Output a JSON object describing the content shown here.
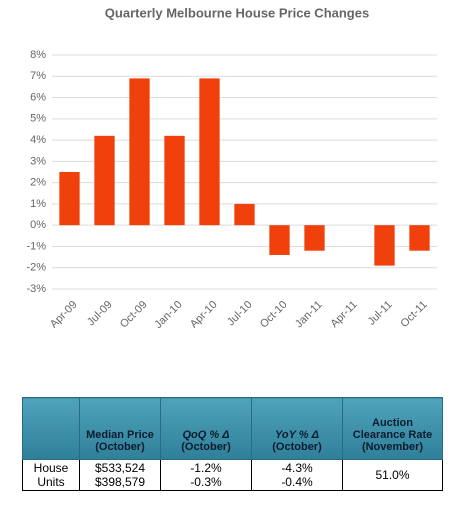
{
  "chart_data": {
    "type": "bar",
    "title": "Quarterly Melbourne House Price Changes",
    "categories": [
      "Apr-09",
      "Jul-09",
      "Oct-09",
      "Jan-10",
      "Apr-10",
      "Jul-10",
      "Oct-10",
      "Jan-11",
      "Apr-11",
      "Jul-11",
      "Oct-11"
    ],
    "values": [
      2.5,
      4.2,
      6.9,
      4.2,
      6.9,
      1.0,
      -1.4,
      -1.2,
      null,
      -1.9,
      -1.2
    ],
    "color": "#f0400c",
    "ylim": [
      -3,
      8
    ],
    "yticks": [
      {
        "value": -3,
        "label": "-3%"
      },
      {
        "value": -2,
        "label": "-2%"
      },
      {
        "value": -1,
        "label": "-1%"
      },
      {
        "value": 0,
        "label": "0%"
      },
      {
        "value": 1,
        "label": "1%"
      },
      {
        "value": 2,
        "label": "2%"
      },
      {
        "value": 3,
        "label": "3%"
      },
      {
        "value": 4,
        "label": "4%"
      },
      {
        "value": 5,
        "label": "5%"
      },
      {
        "value": 6,
        "label": "6%"
      },
      {
        "value": 7,
        "label": "7%"
      },
      {
        "value": 8,
        "label": "8%"
      }
    ],
    "grid": true
  },
  "table": {
    "columns": [
      {
        "title": "Median Price",
        "note": "(October)"
      },
      {
        "title": "QoQ % Δ",
        "note": "(October)"
      },
      {
        "title": "YoY % Δ",
        "note": "(October)"
      },
      {
        "title": "Auction Clearance Rate",
        "note": "(November)"
      }
    ],
    "rows": [
      {
        "label": "House",
        "median": "$533,524",
        "qoq": "-1.2%",
        "yoy": "-4.3%"
      },
      {
        "label": "Units",
        "median": "$398,579",
        "qoq": "-0.3%",
        "yoy": "-0.4%"
      }
    ],
    "clearance_rate": "51.0%"
  }
}
